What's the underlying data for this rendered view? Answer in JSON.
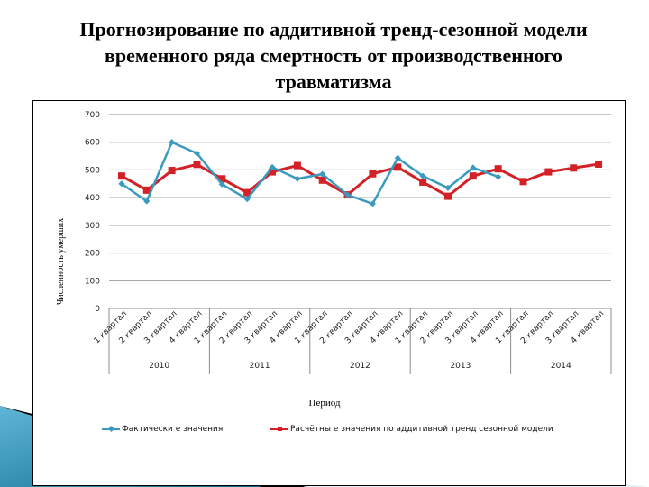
{
  "slide": {
    "title": "Прогнозирование по аддитивной тренд-сезонной модели временного ряда смертность от производственного травматизма",
    "title_lines": [
      "Прогнозирование по аддитивной тренд-сезонной модели",
      "временного ряда смертность от производственного",
      "травматизма"
    ]
  },
  "colors": {
    "actual": "#3a9bbf",
    "forecast": "#d42027",
    "grid": "#8c8c8c",
    "swoosh_dark": "#0b6a8c",
    "swoosh_light": "#5fb6d6"
  },
  "chart_data": {
    "type": "line",
    "title": "",
    "xlabel": "Период",
    "ylabel": "Численность умерших",
    "ylim": [
      0,
      700
    ],
    "yticks": [
      0,
      100,
      200,
      300,
      400,
      500,
      600,
      700
    ],
    "grid": true,
    "legend_position": "bottom",
    "categories": [
      "1 квартал 2010",
      "2 квартал 2010",
      "3 квартал 2010",
      "4 квартал 2010",
      "1 квартал 2011",
      "2 квартал 2011",
      "3 квартал 2011",
      "4 квартал 2011",
      "1 квартал 2012",
      "2 квартал 2012",
      "3 квартал 2012",
      "4 квартал 2012",
      "1 квартал 2013",
      "2 квартал 2013",
      "3 квартал 2013",
      "4 квартал 2013",
      "1 квартал 2014",
      "2 квартал 2014",
      "3 квартал 2014",
      "4 квартал 2014"
    ],
    "quarter_labels": [
      "1 квартал",
      "2 квартал",
      "3 квартал",
      "4 квартал"
    ],
    "years": [
      "2010",
      "2011",
      "2012",
      "2013",
      "2014"
    ],
    "series": [
      {
        "name": "Фактические значения",
        "marker": "diamond",
        "values": [
          450,
          387,
          600,
          560,
          448,
          395,
          510,
          468,
          485,
          410,
          378,
          543,
          478,
          435,
          508,
          475,
          null,
          null,
          null,
          null
        ]
      },
      {
        "name": "Расчётные значения по аддитивной тренд сезонной модели",
        "marker": "square",
        "values": [
          478,
          427,
          498,
          520,
          468,
          418,
          493,
          516,
          463,
          410,
          486,
          510,
          456,
          405,
          478,
          504,
          458,
          493,
          507,
          521
        ]
      }
    ]
  },
  "legend": {
    "actual_label": "Фактически е значения",
    "forecast_label": "Расчётны е значения по аддитивной тренд сезонной модели"
  }
}
